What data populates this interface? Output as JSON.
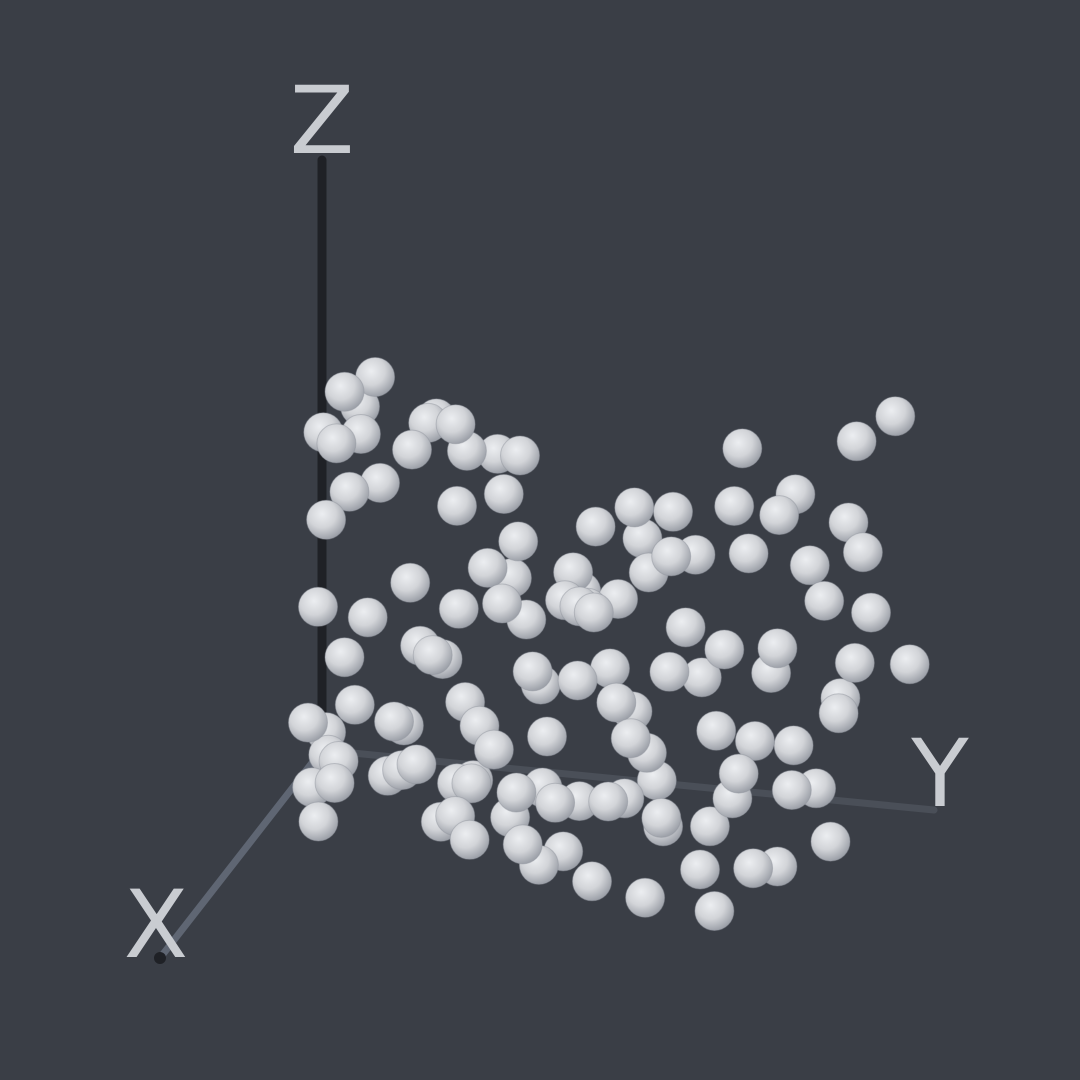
{
  "chart_data": {
    "type": "scatter",
    "projection": "3d",
    "marker": "sphere",
    "marker_color": "#d2d4d8",
    "background_color": "#3a3e46",
    "grid": false,
    "legend": "none",
    "axes": {
      "x": {
        "label": "X",
        "color": "#5f6673"
      },
      "y": {
        "label": "Y",
        "color": "#4a4f58"
      },
      "z": {
        "label": "Z",
        "color": "#1f2126"
      }
    },
    "points": [
      [
        0.05,
        0.05,
        0.63
      ],
      [
        0.05,
        0.1,
        0.66
      ],
      [
        0.03,
        0.01,
        0.55
      ],
      [
        0.03,
        0.07,
        0.6
      ],
      [
        0.1,
        0.05,
        0.56
      ],
      [
        0.1,
        0.09,
        0.58
      ],
      [
        0.02,
        0.05,
        0.45
      ],
      [
        0.05,
        0.02,
        0.41
      ],
      [
        0.02,
        0.1,
        0.47
      ],
      [
        0.1,
        0.02,
        0.28
      ],
      [
        0.05,
        0.05,
        0.18
      ],
      [
        0.02,
        0.08,
        0.24
      ],
      [
        0.1,
        0.08,
        0.12
      ],
      [
        0.2,
        0.08,
        0.06
      ],
      [
        0.2,
        0.03,
        0.12
      ],
      [
        0.05,
        0.02,
        0.05
      ],
      [
        0.15,
        0.05,
        0.05
      ],
      [
        0.25,
        0.05,
        0.03
      ],
      [
        0.3,
        0.1,
        0.06
      ],
      [
        0.4,
        0.1,
        0.03
      ],
      [
        0.2,
        0.3,
        0.05
      ],
      [
        0.3,
        0.3,
        0.08
      ],
      [
        0.4,
        0.3,
        0.05
      ],
      [
        0.35,
        0.4,
        0.05
      ],
      [
        0.15,
        0.4,
        0.03
      ],
      [
        0.3,
        0.5,
        0.07
      ],
      [
        0.4,
        0.5,
        0.02
      ],
      [
        0.2,
        0.6,
        0.08
      ],
      [
        0.25,
        0.7,
        0.03
      ],
      [
        0.35,
        0.65,
        0.06
      ],
      [
        0.3,
        0.75,
        0.1
      ],
      [
        0.4,
        0.85,
        0.03
      ],
      [
        0.05,
        0.2,
        0.6
      ],
      [
        0.05,
        0.25,
        0.55
      ],
      [
        0.1,
        0.2,
        0.61
      ],
      [
        0.12,
        0.25,
        0.62
      ],
      [
        0.2,
        0.2,
        0.6
      ],
      [
        0.05,
        0.3,
        0.55
      ],
      [
        0.1,
        0.35,
        0.57
      ],
      [
        0.2,
        0.35,
        0.54
      ],
      [
        0.3,
        0.3,
        0.55
      ],
      [
        0.3,
        0.4,
        0.5
      ],
      [
        0.4,
        0.4,
        0.43
      ],
      [
        0.3,
        0.5,
        0.4
      ],
      [
        0.2,
        0.5,
        0.5
      ],
      [
        0.4,
        0.55,
        0.43
      ],
      [
        0.5,
        0.55,
        0.35
      ],
      [
        0.5,
        0.7,
        0.38
      ],
      [
        0.4,
        0.7,
        0.42
      ],
      [
        0.3,
        0.65,
        0.5
      ],
      [
        0.2,
        0.85,
        0.47
      ],
      [
        0.4,
        0.85,
        0.4
      ],
      [
        0.3,
        0.9,
        0.45
      ],
      [
        0.35,
        0.75,
        0.37
      ],
      [
        0.2,
        0.75,
        0.48
      ],
      [
        0.25,
        0.6,
        0.45
      ],
      [
        0.1,
        0.6,
        0.5
      ],
      [
        0.1,
        0.7,
        0.52
      ],
      [
        0.15,
        0.55,
        0.52
      ],
      [
        0.2,
        0.8,
        0.55
      ],
      [
        0.25,
        0.95,
        0.52
      ],
      [
        0.1,
        0.8,
        0.55
      ],
      [
        0.15,
        0.9,
        0.53
      ],
      [
        0.05,
        0.7,
        0.6
      ],
      [
        0.1,
        0.9,
        0.65
      ],
      [
        0.05,
        0.95,
        0.68
      ],
      [
        0.15,
        0.45,
        0.4
      ],
      [
        0.2,
        0.45,
        0.37
      ],
      [
        0.15,
        0.35,
        0.38
      ],
      [
        0.1,
        0.45,
        0.35
      ],
      [
        0.25,
        0.4,
        0.35
      ],
      [
        0.25,
        0.5,
        0.38
      ],
      [
        0.3,
        0.55,
        0.3
      ],
      [
        0.35,
        0.6,
        0.25
      ],
      [
        0.3,
        0.7,
        0.3
      ],
      [
        0.4,
        0.75,
        0.25
      ],
      [
        0.35,
        0.8,
        0.22
      ],
      [
        0.25,
        0.8,
        0.3
      ],
      [
        0.45,
        0.8,
        0.2
      ],
      [
        0.5,
        0.9,
        0.2
      ],
      [
        0.4,
        0.95,
        0.3
      ],
      [
        0.3,
        0.95,
        0.35
      ],
      [
        0.2,
        0.95,
        0.4
      ],
      [
        0.15,
        1.0,
        0.3
      ],
      [
        0.45,
        0.65,
        0.22
      ],
      [
        0.5,
        0.6,
        0.15
      ],
      [
        0.55,
        0.7,
        0.15
      ],
      [
        0.4,
        0.6,
        0.12
      ],
      [
        0.45,
        0.5,
        0.12
      ],
      [
        0.5,
        0.45,
        0.15
      ],
      [
        0.45,
        0.4,
        0.2
      ],
      [
        0.35,
        0.35,
        0.2
      ],
      [
        0.25,
        0.3,
        0.2
      ],
      [
        0.2,
        0.25,
        0.25
      ],
      [
        0.15,
        0.2,
        0.25
      ],
      [
        0.1,
        0.25,
        0.3
      ],
      [
        0.25,
        0.2,
        0.15
      ],
      [
        0.35,
        0.2,
        0.1
      ],
      [
        0.45,
        0.25,
        0.15
      ],
      [
        0.4,
        0.35,
        0.12
      ],
      [
        0.5,
        0.35,
        0.1
      ],
      [
        0.55,
        0.5,
        0.05
      ],
      [
        0.6,
        0.6,
        0.05
      ],
      [
        0.5,
        0.75,
        0.05
      ],
      [
        0.45,
        0.95,
        0.1
      ],
      [
        0.55,
        0.85,
        0.08
      ],
      [
        0.6,
        0.8,
        0.02
      ],
      [
        0.65,
        0.7,
        0.05
      ],
      [
        0.35,
        0.45,
        0.28
      ],
      [
        0.4,
        0.45,
        0.32
      ],
      [
        0.25,
        0.55,
        0.4
      ],
      [
        0.15,
        0.65,
        0.45
      ],
      [
        0.1,
        0.55,
        0.45
      ],
      [
        0.3,
        0.35,
        0.45
      ],
      [
        0.4,
        0.25,
        0.45
      ],
      [
        0.45,
        0.3,
        0.35
      ],
      [
        0.5,
        0.25,
        0.25
      ],
      [
        0.55,
        0.3,
        0.2
      ],
      [
        0.3,
        0.85,
        0.2
      ],
      [
        0.2,
        0.9,
        0.25
      ],
      [
        0.5,
        0.5,
        0.25
      ],
      [
        0.45,
        0.6,
        0.3
      ],
      [
        0.55,
        0.65,
        0.28
      ],
      [
        0.35,
        0.9,
        0.15
      ],
      [
        0.6,
        0.4,
        0.1
      ],
      [
        0.65,
        0.5,
        0.12
      ]
    ]
  }
}
